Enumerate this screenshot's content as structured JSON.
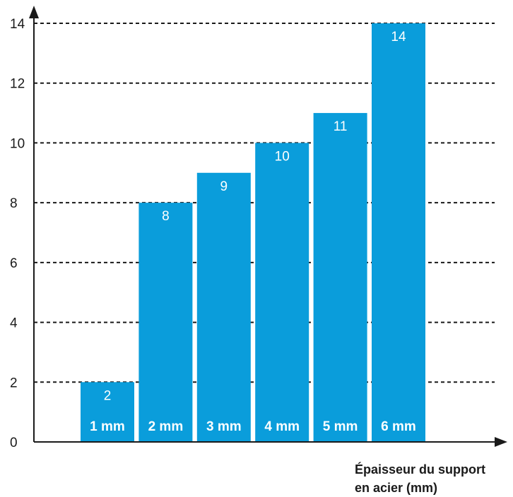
{
  "chart_data": {
    "type": "bar",
    "categories": [
      "1 mm",
      "2 mm",
      "3 mm",
      "4 mm",
      "5 mm",
      "6 mm"
    ],
    "values": [
      2,
      8,
      9,
      10,
      11,
      14
    ],
    "value_labels": [
      "2",
      "8",
      "9",
      "10",
      "11",
      "14"
    ],
    "ylim": [
      0,
      14
    ],
    "yticks": [
      "0",
      "2",
      "4",
      "6",
      "8",
      "10",
      "12",
      "14"
    ],
    "xlabel": [
      "Épaisseur du support",
      "en acier (mm)"
    ],
    "ylabel": "",
    "grid": "horizontal dashed",
    "bar_color": "#0a9ddb",
    "axis_color": "#1a1a1a"
  }
}
